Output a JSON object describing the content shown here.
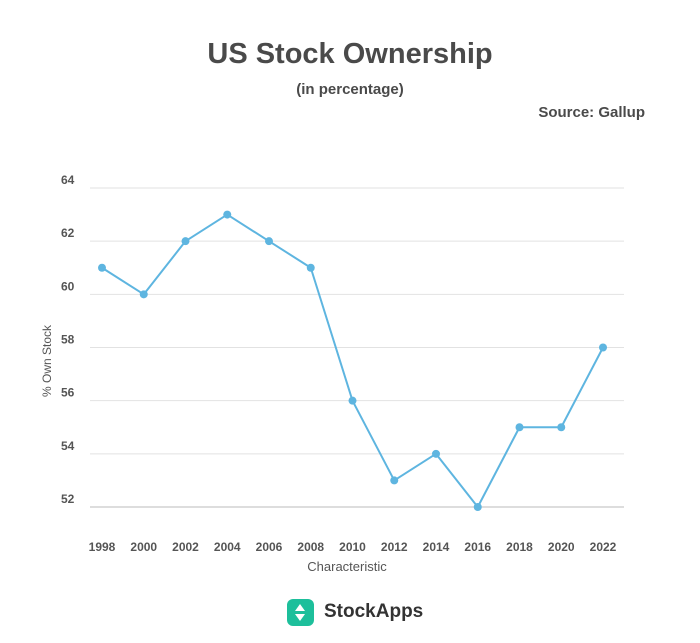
{
  "header": {
    "title": "US Stock Ownership",
    "subtitle": "(in percentage)",
    "source": "Source: Gallup"
  },
  "footer": {
    "brand": "StockApps",
    "brand_color": "#1dbf9b",
    "logo_icon": "up-down-arrows-icon"
  },
  "chart_data": {
    "type": "line",
    "title": "US Stock Ownership",
    "subtitle": "(in percentage)",
    "xlabel": "Characteristic",
    "ylabel": "% Own Stock",
    "x": [
      "1998",
      "2000",
      "2002",
      "2004",
      "2006",
      "2008",
      "2010",
      "2012",
      "2014",
      "2016",
      "2018",
      "2020",
      "2022"
    ],
    "series": [
      {
        "values": [
          61,
          60,
          62,
          63,
          62,
          61,
          56,
          53,
          54,
          52,
          55,
          55,
          58
        ],
        "color": "#5eb5e0"
      }
    ],
    "ylim": [
      52,
      64
    ],
    "yticks": [
      52,
      54,
      56,
      58,
      60,
      62,
      64
    ],
    "grid": true,
    "legend": "none"
  }
}
